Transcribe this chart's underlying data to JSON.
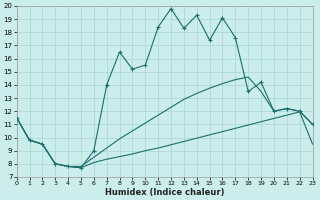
{
  "xlabel": "Humidex (Indice chaleur)",
  "xlim": [
    0,
    23
  ],
  "ylim": [
    7,
    20
  ],
  "yticks": [
    7,
    8,
    9,
    10,
    11,
    12,
    13,
    14,
    15,
    16,
    17,
    18,
    19,
    20
  ],
  "xticks": [
    0,
    1,
    2,
    3,
    4,
    5,
    6,
    7,
    8,
    9,
    10,
    11,
    12,
    13,
    14,
    15,
    16,
    17,
    18,
    19,
    20,
    21,
    22,
    23
  ],
  "bg_color": "#cbeeed",
  "grid_color": "#a8d5d2",
  "line_color": "#1c6e6a",
  "main_x": [
    0,
    1,
    2,
    3,
    4,
    5,
    6,
    7,
    8,
    9,
    10,
    11,
    12,
    13,
    14,
    15,
    16,
    17,
    18,
    19,
    20,
    21,
    22,
    23
  ],
  "main_y": [
    11.5,
    9.8,
    9.5,
    8.0,
    7.8,
    7.7,
    9.0,
    14.0,
    16.5,
    15.2,
    15.5,
    18.4,
    19.8,
    18.3,
    19.3,
    17.4,
    19.1,
    17.6,
    13.5,
    14.2,
    12.0,
    12.2,
    12.0,
    11.0
  ],
  "lower_x": [
    0,
    1,
    2,
    3,
    4,
    5,
    6,
    7,
    8,
    9,
    10,
    11,
    12,
    13,
    14,
    15,
    16,
    17,
    18,
    19,
    20,
    21,
    22,
    23
  ],
  "lower_y": [
    11.5,
    9.8,
    9.5,
    8.0,
    7.8,
    7.7,
    8.1,
    8.35,
    8.55,
    8.75,
    9.0,
    9.2,
    9.45,
    9.7,
    9.95,
    10.2,
    10.45,
    10.7,
    10.95,
    11.2,
    11.45,
    11.7,
    11.95,
    9.5
  ],
  "upper_x": [
    0,
    1,
    2,
    3,
    4,
    5,
    6,
    7,
    8,
    9,
    10,
    11,
    12,
    13,
    14,
    15,
    16,
    17,
    18,
    19,
    20,
    21,
    22,
    23
  ],
  "upper_y": [
    11.5,
    9.8,
    9.5,
    8.0,
    7.8,
    7.8,
    8.5,
    9.2,
    9.9,
    10.5,
    11.1,
    11.7,
    12.3,
    12.9,
    13.35,
    13.75,
    14.1,
    14.4,
    14.6,
    13.5,
    12.0,
    12.2,
    12.0,
    11.0
  ]
}
